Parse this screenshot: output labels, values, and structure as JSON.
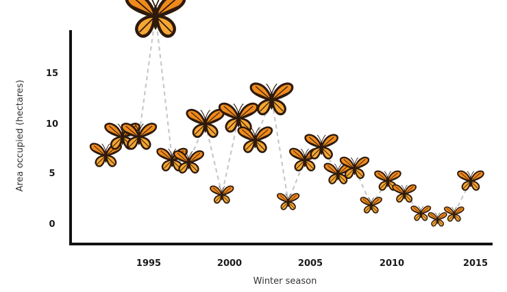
{
  "chart_data": {
    "type": "scatter",
    "title": "",
    "xlabel": "Winter season",
    "ylabel": "Area occupied (hectares)",
    "xlim": [
      1991,
      2016.2
    ],
    "ylim": [
      -1.2,
      19
    ],
    "x_ticks": [
      "1995",
      "2000",
      "2005",
      "2010",
      "2015"
    ],
    "y_ticks": [
      "0",
      "5",
      "10",
      "15"
    ],
    "grid": false,
    "connector": "dashed",
    "x": [
      1993,
      1994,
      1995,
      1996,
      1997,
      1998,
      1999,
      2000,
      2001,
      2002,
      2003,
      2004,
      2005,
      2006,
      2007,
      2008,
      2009,
      2010,
      2011,
      2012,
      2013,
      2014,
      2015
    ],
    "values": [
      6.2,
      7.8,
      7.8,
      18.2,
      5.8,
      5.6,
      8.9,
      2.8,
      9.4,
      7.5,
      11.0,
      2.2,
      5.8,
      6.9,
      4.6,
      5.1,
      1.9,
      4.0,
      2.9,
      1.2,
      0.67,
      1.13,
      4.0
    ],
    "marker_colors": {
      "wing": "#ef8a1c",
      "wing_light": "#f6a632",
      "outline": "#2e1a0d",
      "connector": "#c8c8c8"
    }
  }
}
